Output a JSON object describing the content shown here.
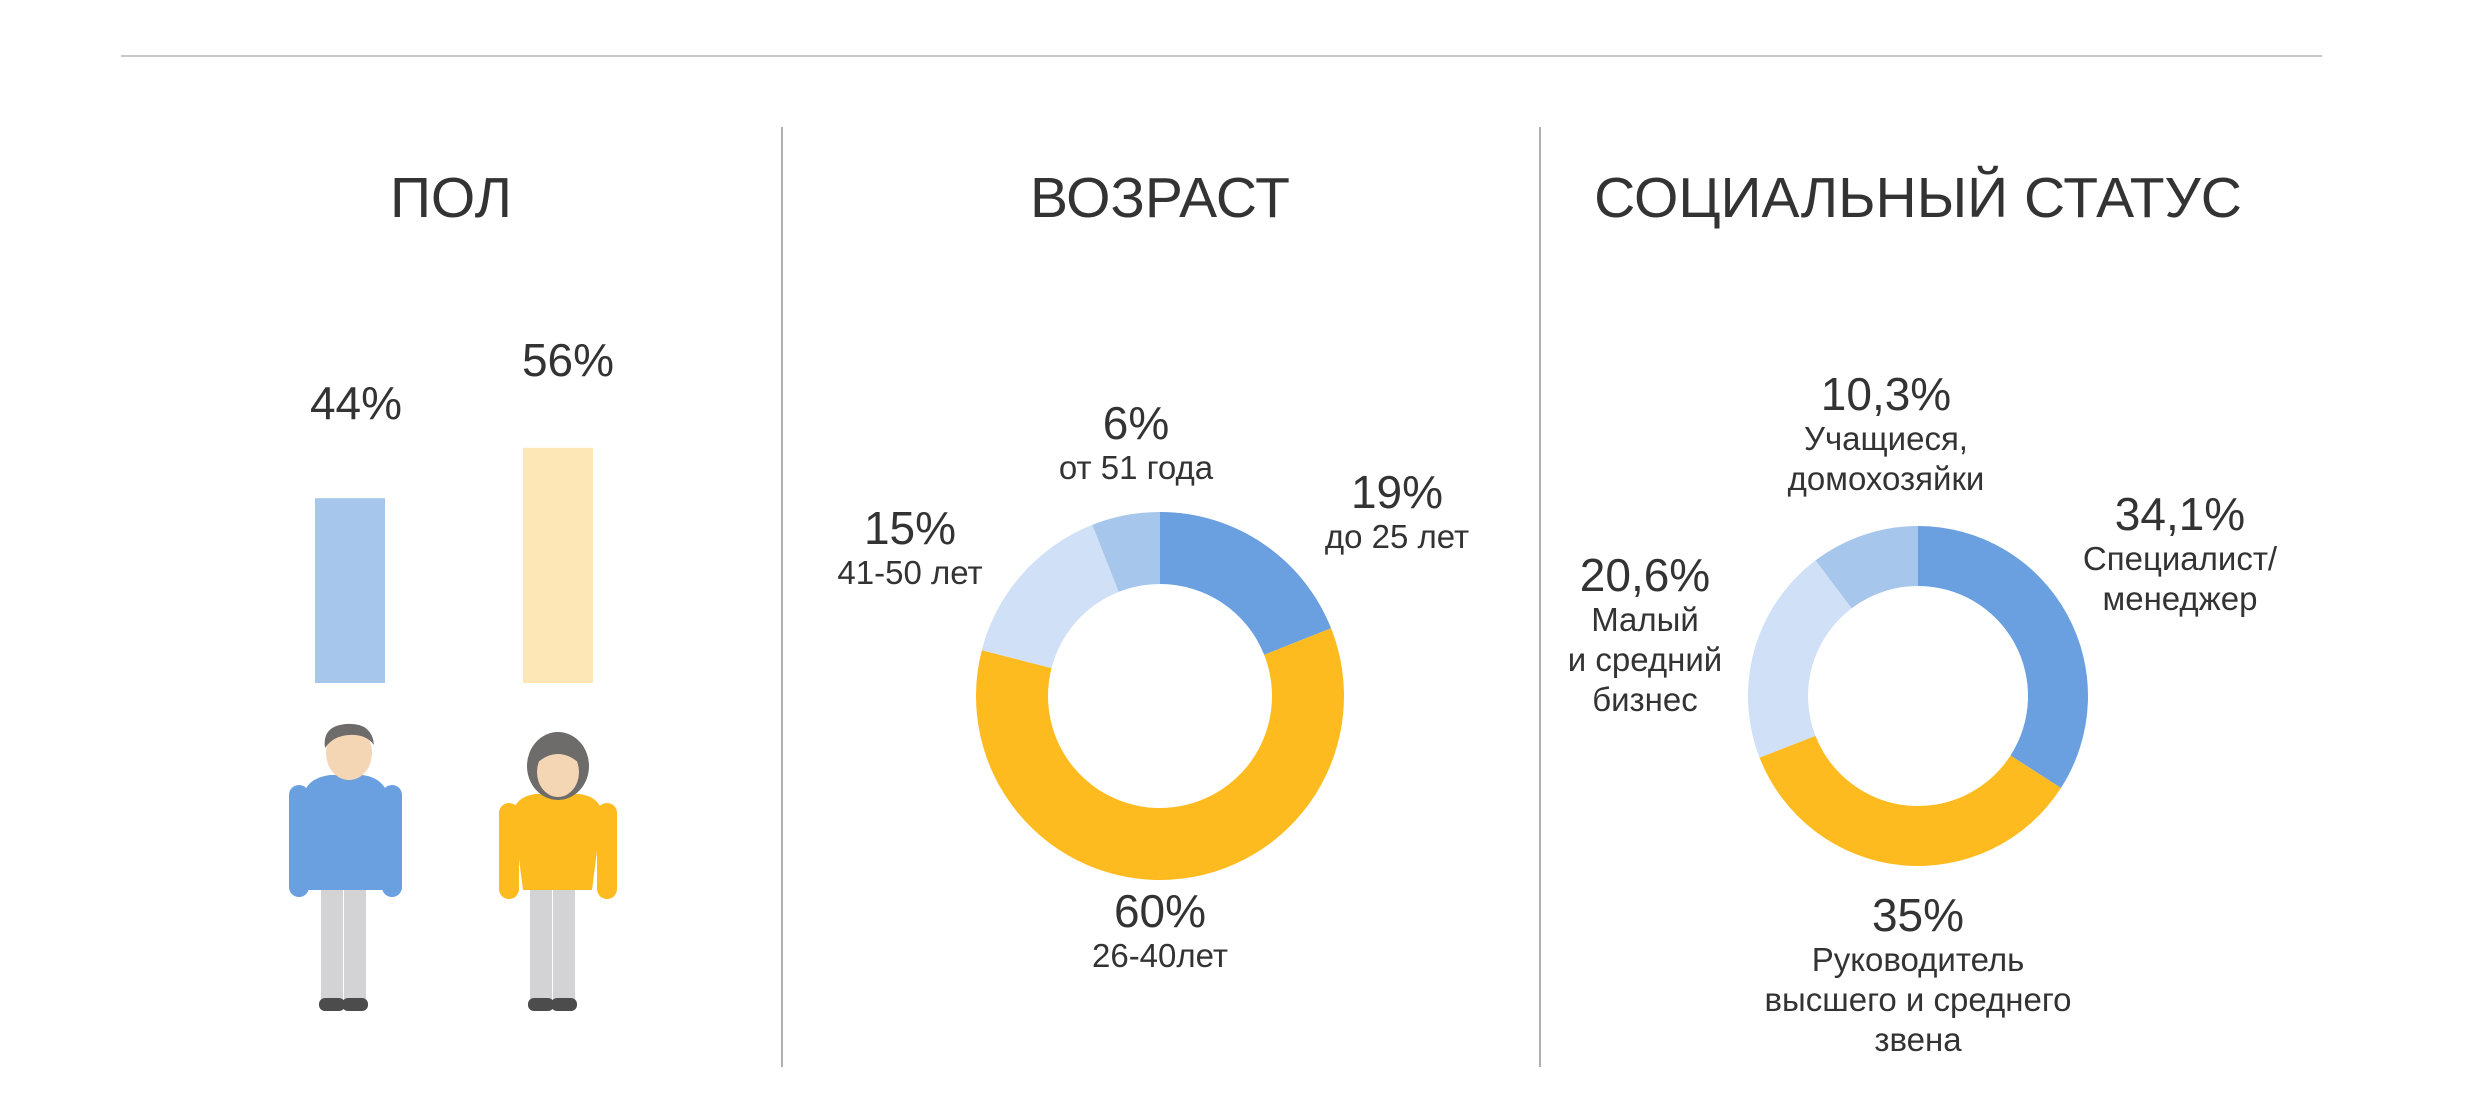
{
  "colors": {
    "blue": "#6a9fe0",
    "light_blue": "#a6c6ec",
    "pale_blue": "#cfe0f7",
    "yellow": "#fdbb20",
    "pale_yellow": "#fde7b7",
    "skin": "#f5d6b4",
    "hair": "#6e6c6a",
    "pants": "#d3d3d5",
    "shoes": "#4c4c4c"
  },
  "chart_data": [
    {
      "type": "bar",
      "title": "ПОЛ",
      "categories": [
        "man-icon",
        "woman-icon"
      ],
      "values": [
        44,
        56
      ],
      "labels": [
        "44%",
        "56%"
      ]
    },
    {
      "type": "pie",
      "title": "ВОЗРАСТ",
      "series": [
        {
          "pct": "19%",
          "caption": [
            "до 25 лет"
          ],
          "value": 19
        },
        {
          "pct": "60%",
          "caption": [
            "26-40лет"
          ],
          "value": 60
        },
        {
          "pct": "15%",
          "caption": [
            "41-50 лет"
          ],
          "value": 15
        },
        {
          "pct": "6%",
          "caption": [
            "от 51 года"
          ],
          "value": 6
        }
      ]
    },
    {
      "type": "pie",
      "title": "СОЦИАЛЬНЫЙ СТАТУС",
      "series": [
        {
          "pct": "34,1%",
          "caption": [
            "Специалист/",
            "менеджер"
          ],
          "value": 34.1
        },
        {
          "pct": "35%",
          "caption": [
            "Руководитель",
            "высшего и среднего",
            "звена"
          ],
          "value": 35
        },
        {
          "pct": "20,6%",
          "caption": [
            "Малый",
            "и средний",
            "бизнес"
          ],
          "value": 20.6
        },
        {
          "pct": "10,3%",
          "caption": [
            "Учащиеся,",
            "домохозяйки"
          ],
          "value": 10.3
        }
      ]
    }
  ]
}
